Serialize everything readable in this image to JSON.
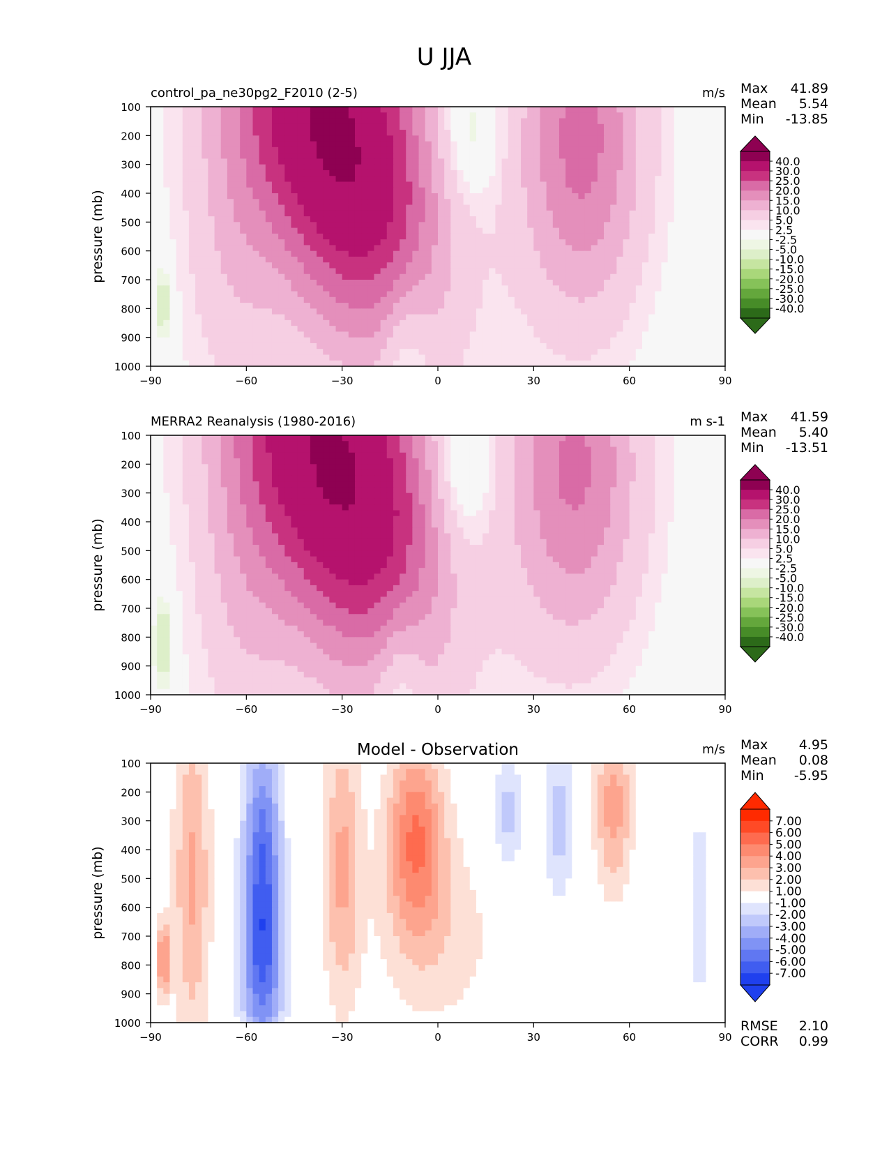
{
  "figure_title": "U JJA",
  "chart_data": [
    {
      "type": "contourf",
      "title": "control_pa_ne30pg2_F2010 (2-5)",
      "units": "m/s",
      "xlabel": "",
      "ylabel": "pressure (mb)",
      "xlim": [
        -90,
        90
      ],
      "ylim": [
        1000,
        100
      ],
      "x_ticks": [
        "−90",
        "−60",
        "−30",
        "0",
        "30",
        "60",
        "90"
      ],
      "y_ticks": [
        "100",
        "200",
        "300",
        "400",
        "500",
        "600",
        "700",
        "800",
        "900",
        "1000"
      ],
      "stats": {
        "max_label": "Max",
        "max": "41.89",
        "mean_label": "Mean",
        "mean": "5.54",
        "min_label": "Min",
        "min": "-13.85"
      },
      "levels": [
        "40.0",
        "30.0",
        "25.0",
        "20.0",
        "15.0",
        "10.0",
        "5.0",
        "2.5",
        "-2.5",
        "-5.0",
        "-10.0",
        "-15.0",
        "-20.0",
        "-25.0",
        "-30.0",
        "-40.0"
      ],
      "colorbar_colors": [
        "#8e0152",
        "#b5126d",
        "#c8327f",
        "#d96ba6",
        "#e48fbb",
        "#eeb1d2",
        "#f6cfe3",
        "#fae4ef",
        "#f7f7f7",
        "#eef6e4",
        "#ddefc9",
        "#c6e5a1",
        "#a9d77a",
        "#86c259",
        "#64a73c",
        "#478c28",
        "#2c6a19"
      ],
      "features": [
        {
          "lat": -32,
          "p": 210,
          "value": 42,
          "rx": 30,
          "rp": 700,
          "skew": -0.75
        },
        {
          "lat": 45,
          "p": 215,
          "value": 22,
          "rx": 20,
          "rp": 620,
          "skew": 0
        },
        {
          "lat": -65,
          "p": 600,
          "value": 7,
          "rx": 16,
          "rp": 650,
          "skew": 0
        },
        {
          "lat": 10,
          "p": 200,
          "value": -8,
          "rx": 9,
          "rp": 220,
          "skew": 0
        },
        {
          "lat": -10,
          "p": 950,
          "value": -8,
          "rx": 8,
          "rp": 260,
          "skew": 0
        },
        {
          "lat": -86,
          "p": 780,
          "value": -9,
          "rx": 3,
          "rp": 140,
          "skew": 0
        },
        {
          "lat": 8,
          "p": 550,
          "value": -2,
          "rx": 14,
          "rp": 600,
          "skew": 0
        }
      ]
    },
    {
      "type": "contourf",
      "title": "MERRA2 Reanalysis (1980-2016)",
      "units": "m s-1",
      "xlabel": "",
      "ylabel": "pressure (mb)",
      "xlim": [
        -90,
        90
      ],
      "ylim": [
        1000,
        100
      ],
      "x_ticks": [
        "−90",
        "−60",
        "−30",
        "0",
        "30",
        "60",
        "90"
      ],
      "y_ticks": [
        "100",
        "200",
        "300",
        "400",
        "500",
        "600",
        "700",
        "800",
        "900",
        "1000"
      ],
      "stats": {
        "max_label": "Max",
        "max": "41.59",
        "mean_label": "Mean",
        "mean": "5.40",
        "min_label": "Min",
        "min": "-13.51"
      },
      "levels": [
        "40.0",
        "30.0",
        "25.0",
        "20.0",
        "15.0",
        "10.0",
        "5.0",
        "2.5",
        "-2.5",
        "-5.0",
        "-10.0",
        "-15.0",
        "-20.0",
        "-25.0",
        "-30.0",
        "-40.0"
      ],
      "colorbar_colors": [
        "#8e0152",
        "#b5126d",
        "#c8327f",
        "#d96ba6",
        "#e48fbb",
        "#eeb1d2",
        "#f6cfe3",
        "#fae4ef",
        "#f7f7f7",
        "#eef6e4",
        "#ddefc9",
        "#c6e5a1",
        "#a9d77a",
        "#86c259",
        "#64a73c",
        "#478c28",
        "#2c6a19"
      ],
      "features": [
        {
          "lat": -32,
          "p": 210,
          "value": 41.5,
          "rx": 31,
          "rp": 720,
          "skew": -0.75
        },
        {
          "lat": 43,
          "p": 210,
          "value": 21,
          "rx": 21,
          "rp": 620,
          "skew": 0
        },
        {
          "lat": -62,
          "p": 650,
          "value": 7,
          "rx": 16,
          "rp": 650,
          "skew": 0
        },
        {
          "lat": 8,
          "p": 210,
          "value": -9,
          "rx": 9,
          "rp": 260,
          "skew": 0
        },
        {
          "lat": -12,
          "p": 960,
          "value": -8,
          "rx": 8,
          "rp": 260,
          "skew": 0
        },
        {
          "lat": -86,
          "p": 820,
          "value": -10,
          "rx": 3,
          "rp": 160,
          "skew": 0
        },
        {
          "lat": 8,
          "p": 550,
          "value": -2,
          "rx": 14,
          "rp": 600,
          "skew": 0
        }
      ]
    },
    {
      "type": "contourf",
      "title": "Model - Observation",
      "units": "m/s",
      "xlabel": "",
      "ylabel": "pressure (mb)",
      "xlim": [
        -90,
        90
      ],
      "ylim": [
        1000,
        100
      ],
      "x_ticks": [
        "−90",
        "−60",
        "−30",
        "0",
        "30",
        "60",
        "90"
      ],
      "y_ticks": [
        "100",
        "200",
        "300",
        "400",
        "500",
        "600",
        "700",
        "800",
        "900",
        "1000"
      ],
      "stats": {
        "max_label": "Max",
        "max": "4.95",
        "mean_label": "Mean",
        "mean": "0.08",
        "min_label": "Min",
        "min": "-5.95"
      },
      "metrics": {
        "rmse_label": "RMSE",
        "rmse": "2.10",
        "corr_label": "CORR",
        "corr": "0.99"
      },
      "levels": [
        "7.00",
        "6.00",
        "5.00",
        "4.00",
        "3.00",
        "2.00",
        "1.00",
        "-1.00",
        "-2.00",
        "-3.00",
        "-4.00",
        "-5.00",
        "-6.00",
        "-7.00"
      ],
      "colorbar_colors": [
        "#ff2a00",
        "#ff4a26",
        "#fe6b4f",
        "#fd8a70",
        "#fda48e",
        "#fdc0ae",
        "#fde0d6",
        "#ffffff",
        "#dfe4fd",
        "#c0c9fb",
        "#a0adf8",
        "#8093f5",
        "#6077f2",
        "#405df0",
        "#1f40ee"
      ],
      "features": [
        {
          "lat": -55,
          "p": 450,
          "value": -5.8,
          "rx": 6,
          "rp": 450,
          "skew": 0
        },
        {
          "lat": -55,
          "p": 850,
          "value": -3.5,
          "rx": 7,
          "rp": 300,
          "skew": 0
        },
        {
          "lat": -7,
          "p": 350,
          "value": 4.8,
          "rx": 9,
          "rp": 330,
          "skew": 0
        },
        {
          "lat": -30,
          "p": 450,
          "value": 3.2,
          "rx": 6,
          "rp": 500,
          "skew": 0
        },
        {
          "lat": -77,
          "p": 500,
          "value": 3.2,
          "rx": 6,
          "rp": 600,
          "skew": 0
        },
        {
          "lat": -86,
          "p": 780,
          "value": 4.5,
          "rx": 2,
          "rp": 130,
          "skew": 0
        },
        {
          "lat": 55,
          "p": 250,
          "value": 3.5,
          "rx": 6,
          "rp": 300,
          "skew": 0
        },
        {
          "lat": 22,
          "p": 280,
          "value": -2.5,
          "rx": 5,
          "rp": 200,
          "skew": 0
        },
        {
          "lat": 38,
          "p": 300,
          "value": -2.5,
          "rx": 5,
          "rp": 280,
          "skew": 0
        },
        {
          "lat": 82,
          "p": 600,
          "value": -1.6,
          "rx": 4,
          "rp": 420,
          "skew": 0
        },
        {
          "lat": 0,
          "p": 700,
          "value": 1.6,
          "rx": 20,
          "rp": 350,
          "skew": 0
        }
      ]
    }
  ]
}
